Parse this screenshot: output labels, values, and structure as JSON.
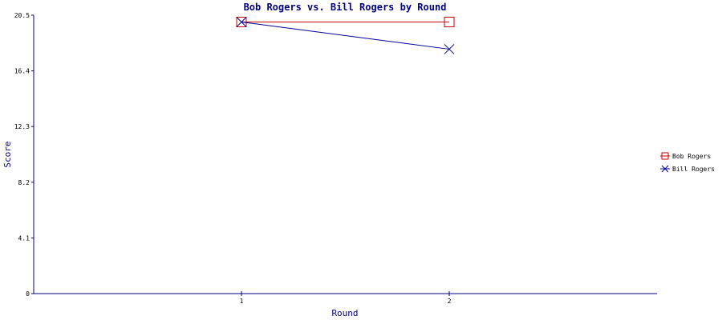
{
  "chart_data": {
    "type": "line",
    "title": "Bob Rogers vs. Bill Rogers by Round",
    "xlabel": "Round",
    "ylabel": "Score",
    "categories": [
      "1",
      "2"
    ],
    "y_ticks": [
      "0",
      "4.1",
      "8.2",
      "12.3",
      "16.4",
      "20.5"
    ],
    "ylim": [
      0,
      20.5
    ],
    "grid": false,
    "legend_position": "right",
    "series": [
      {
        "name": "Bob Rogers",
        "values": [
          20,
          20
        ],
        "color": "#cc0000",
        "marker": "square"
      },
      {
        "name": "Bill Rogers",
        "values": [
          20,
          18
        ],
        "color": "#000099",
        "marker": "x"
      }
    ],
    "axis_color": "#000080"
  }
}
